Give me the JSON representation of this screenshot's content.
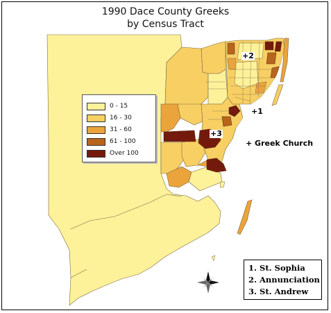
{
  "title": {
    "line1": "1990 Dace County Greeks",
    "line2": "by Census Tract"
  },
  "legend": {
    "items": [
      {
        "label": "0 - 15",
        "color": "#fdf19a"
      },
      {
        "label": "16 - 30",
        "color": "#f7cf63"
      },
      {
        "label": "31 - 60",
        "color": "#eba33c"
      },
      {
        "label": "61 - 100",
        "color": "#b8651c"
      },
      {
        "label": "Over 100",
        "color": "#741a0c"
      }
    ]
  },
  "map_labels": {
    "church1": "+1",
    "church2": "+2",
    "church3": "+3",
    "greek_church": "+ Greek Church"
  },
  "key": {
    "items": [
      "1. St. Sophia",
      "2. Annunciation",
      "3. St. Andrew"
    ]
  },
  "icons": {
    "compass": "compass-rose-icon"
  }
}
